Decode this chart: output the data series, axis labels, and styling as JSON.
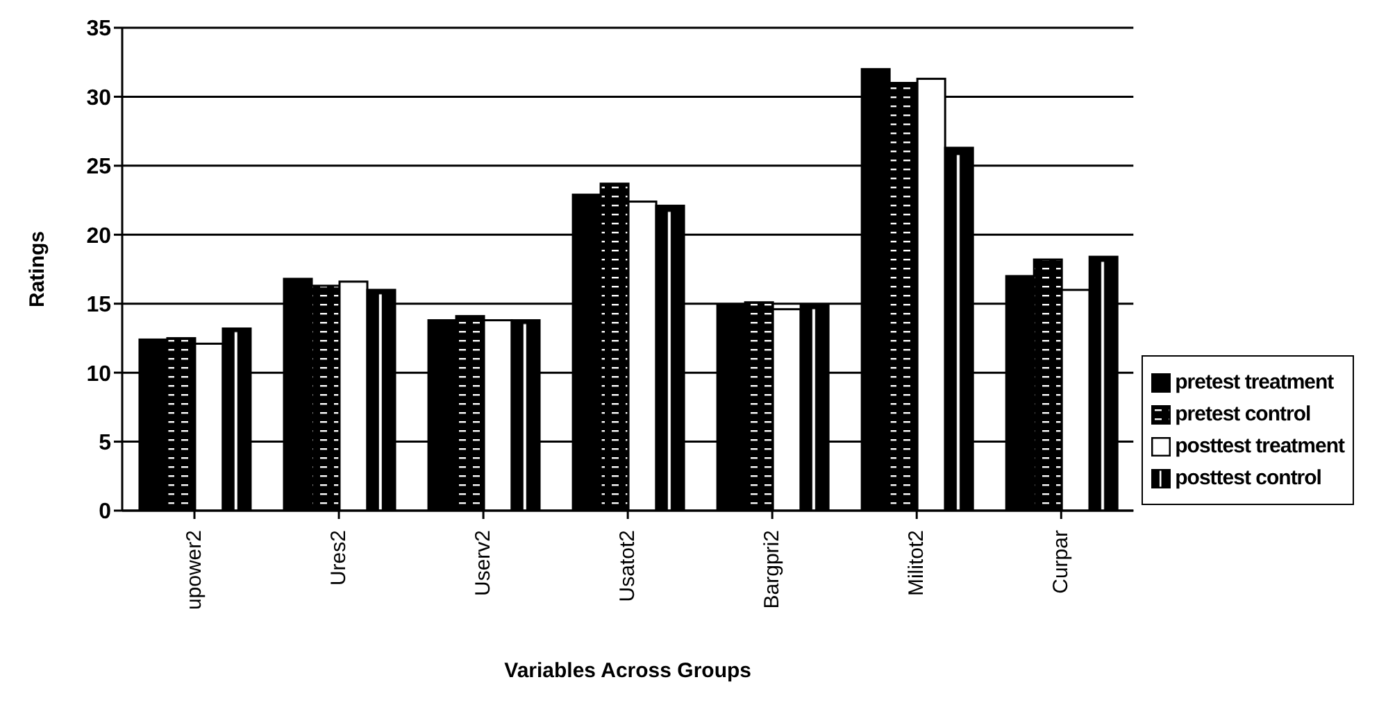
{
  "chart_data": {
    "type": "bar",
    "xlabel": "Variables Across Groups",
    "ylabel": "Ratings",
    "categories": [
      "upower2",
      "Ures2",
      "Userv2",
      "Usatot2",
      "Bargpri2",
      "Militot2",
      "Curpar"
    ],
    "series": [
      {
        "name": "pretest treatment",
        "color": "#000000",
        "values": [
          12.4,
          16.8,
          13.8,
          22.9,
          14.9,
          32.0,
          17.0
        ]
      },
      {
        "name": "pretest control",
        "color": "#000000",
        "values": [
          12.5,
          16.3,
          14.1,
          23.7,
          15.1,
          31.0,
          18.2
        ]
      },
      {
        "name": "posttest treatment",
        "color": "#ffffff",
        "values": [
          12.1,
          16.6,
          13.8,
          22.4,
          14.6,
          31.3,
          16.0
        ]
      },
      {
        "name": "posttest control",
        "color": "#000000",
        "values": [
          13.2,
          16.0,
          13.8,
          22.1,
          14.9,
          26.3,
          18.4
        ]
      }
    ],
    "ylim": [
      0,
      35
    ],
    "yticks": [
      0,
      5,
      10,
      15,
      20,
      25,
      30,
      35
    ],
    "grid": "y",
    "legend": "right"
  }
}
